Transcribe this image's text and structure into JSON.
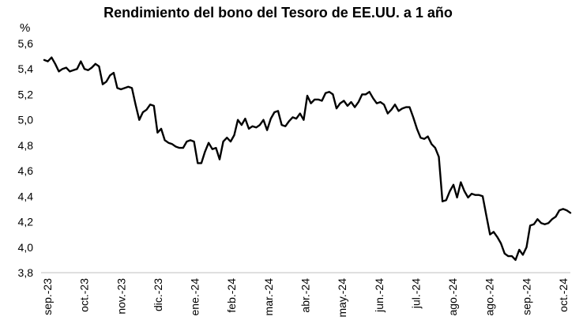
{
  "chart_data": {
    "type": "line",
    "title": "Rendimiento del bono del Tesoro de EE.UU. a 1 año",
    "ylabel": "%",
    "xlabel": "",
    "ylim": [
      3.8,
      5.6
    ],
    "y_ticks": [
      "3,8",
      "4,0",
      "4,2",
      "4,4",
      "4,6",
      "4,8",
      "5,0",
      "5,2",
      "5,4",
      "5,6"
    ],
    "x_tick_labels": [
      "sep.-23",
      "oct.-23",
      "nov.-23",
      "dic.-23",
      "ene.-24",
      "feb.-24",
      "mar.-24",
      "abr.-24",
      "may.-24",
      "jun.-24",
      "jul.-24",
      "ago.-24",
      "ago.-24",
      "sep.-24",
      "oct.-24"
    ],
    "grid": false,
    "series": [
      {
        "values": [
          5.47,
          5.46,
          5.49,
          5.44,
          5.38,
          5.4,
          5.41,
          5.38,
          5.39,
          5.4,
          5.46,
          5.4,
          5.39,
          5.41,
          5.44,
          5.42,
          5.28,
          5.3,
          5.35,
          5.37,
          5.25,
          5.24,
          5.25,
          5.26,
          5.25,
          5.12,
          5.0,
          5.06,
          5.08,
          5.12,
          5.11,
          4.9,
          4.93,
          4.84,
          4.82,
          4.81,
          4.79,
          4.78,
          4.78,
          4.83,
          4.84,
          4.83,
          4.66,
          4.66,
          4.75,
          4.82,
          4.77,
          4.78,
          4.69,
          4.83,
          4.86,
          4.83,
          4.88,
          5.0,
          4.96,
          5.01,
          4.93,
          4.95,
          4.94,
          4.96,
          5.0,
          4.92,
          5.01,
          5.06,
          5.07,
          4.96,
          4.95,
          4.99,
          5.02,
          5.01,
          5.05,
          5.0,
          5.19,
          5.13,
          5.16,
          5.16,
          5.15,
          5.21,
          5.22,
          5.2,
          5.09,
          5.13,
          5.15,
          5.11,
          5.14,
          5.1,
          5.14,
          5.2,
          5.2,
          5.22,
          5.17,
          5.13,
          5.14,
          5.12,
          5.05,
          5.08,
          5.12,
          5.07,
          5.09,
          5.1,
          5.1,
          5.02,
          4.93,
          4.86,
          4.85,
          4.87,
          4.81,
          4.78,
          4.71,
          4.36,
          4.37,
          4.44,
          4.49,
          4.39,
          4.51,
          4.44,
          4.39,
          4.42,
          4.41,
          4.41,
          4.4,
          4.25,
          4.1,
          4.12,
          4.08,
          4.03,
          3.95,
          3.93,
          3.93,
          3.9,
          3.98,
          3.94,
          4.0,
          4.17,
          4.18,
          4.22,
          4.19,
          4.18,
          4.19,
          4.22,
          4.24,
          4.29,
          4.3,
          4.29,
          4.27
        ]
      }
    ]
  }
}
